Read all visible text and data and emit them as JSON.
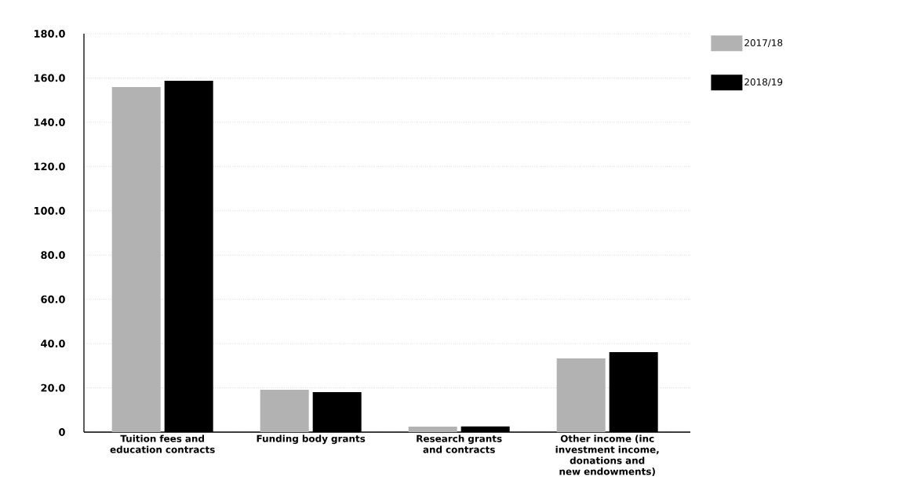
{
  "chart_data": {
    "type": "bar",
    "categories": [
      "Tuition fees and education contracts",
      "Funding body grants",
      "Research grants and contracts",
      "Other income (inc investment income, donations and new endowments)"
    ],
    "series": [
      {
        "name": "2017/18",
        "color": "#b2b2b2",
        "values": [
          155.9,
          19.1,
          2.5,
          33.3
        ]
      },
      {
        "name": "2018/19",
        "color": "#000000",
        "values": [
          158.7,
          18.1,
          2.6,
          36.1
        ]
      }
    ],
    "ylim": [
      0,
      180
    ],
    "yticks": [
      0,
      {
        "value": 20,
        "label": "20.0"
      },
      {
        "value": 40,
        "label": "40.0"
      },
      {
        "value": 60,
        "label": "60.0"
      },
      {
        "value": 80,
        "label": "80.0"
      },
      {
        "value": 100,
        "label": "100.0"
      },
      {
        "value": 120,
        "label": "120.0"
      },
      {
        "value": 140,
        "label": "140.0"
      },
      {
        "value": 160,
        "label": "160.0"
      },
      {
        "value": 180,
        "label": "180.0"
      }
    ],
    "grid": "y",
    "legend": "top right"
  }
}
